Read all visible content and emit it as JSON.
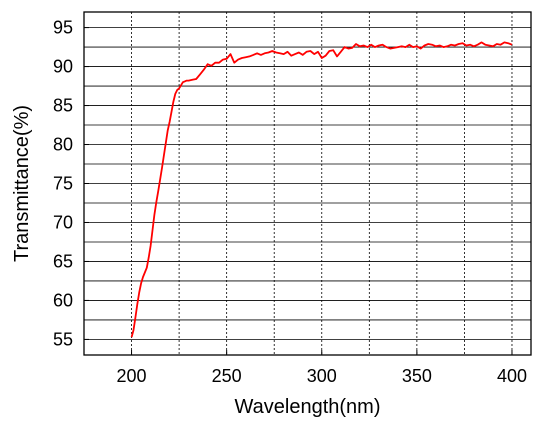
{
  "chart_data": {
    "type": "line",
    "title": "",
    "xlabel": "Wavelength(nm)",
    "ylabel": "Transmittance(%)",
    "xlim": [
      175,
      410
    ],
    "ylim": [
      53,
      97
    ],
    "xticks": [
      200,
      250,
      300,
      350,
      400
    ],
    "yticks": [
      55,
      60,
      65,
      70,
      75,
      80,
      85,
      90,
      95
    ],
    "vgrid_at": [
      200,
      225,
      250,
      275,
      300,
      325,
      350,
      375,
      400
    ],
    "hgrid_at": [
      55,
      57.5,
      60,
      62.5,
      65,
      67.5,
      70,
      72.5,
      75,
      77.5,
      80,
      82.5,
      85,
      87.5,
      90,
      92.5,
      95
    ],
    "grid": true,
    "legend": "none",
    "series": [
      {
        "color": "#ff0000",
        "x": [
          200,
          201,
          202,
          203,
          204,
          205,
          206,
          207,
          208,
          209,
          210,
          211,
          212,
          213,
          214,
          215,
          216,
          217,
          218,
          219,
          220,
          221,
          222,
          223,
          224,
          225,
          226,
          227,
          228,
          229,
          230,
          232,
          234,
          236,
          238,
          240,
          242,
          244,
          246,
          248,
          250,
          252,
          254,
          256,
          258,
          260,
          262,
          264,
          266,
          268,
          270,
          272,
          274,
          276,
          278,
          280,
          282,
          284,
          286,
          288,
          290,
          292,
          294,
          296,
          298,
          300,
          302,
          304,
          306,
          308,
          310,
          312,
          314,
          316,
          318,
          320,
          322,
          324,
          326,
          328,
          330,
          332,
          334,
          336,
          338,
          340,
          342,
          344,
          346,
          348,
          350,
          352,
          354,
          356,
          358,
          360,
          362,
          364,
          366,
          368,
          370,
          372,
          374,
          376,
          378,
          380,
          382,
          384,
          386,
          388,
          390,
          392,
          394,
          396,
          398,
          400
        ],
        "y": [
          55.3,
          56.2,
          57.8,
          59.5,
          61.0,
          62.2,
          63.0,
          63.6,
          64.2,
          65.5,
          67.0,
          69.0,
          71.0,
          72.6,
          74.0,
          75.5,
          77.0,
          78.6,
          80.2,
          81.8,
          82.9,
          84.2,
          85.5,
          86.5,
          87.0,
          87.2,
          87.6,
          88.0,
          88.1,
          88.2,
          88.2,
          88.3,
          88.4,
          89.0,
          89.6,
          90.3,
          90.1,
          90.5,
          90.5,
          90.9,
          91.0,
          91.6,
          90.5,
          90.9,
          91.1,
          91.2,
          91.3,
          91.5,
          91.7,
          91.5,
          91.7,
          91.8,
          92.0,
          91.8,
          91.7,
          91.6,
          91.9,
          91.4,
          91.6,
          91.8,
          91.5,
          91.9,
          92.0,
          91.6,
          91.9,
          91.1,
          91.4,
          92.0,
          92.1,
          91.3,
          91.9,
          92.5,
          92.3,
          92.4,
          92.9,
          92.6,
          92.7,
          92.5,
          92.8,
          92.5,
          92.7,
          92.8,
          92.5,
          92.3,
          92.4,
          92.5,
          92.6,
          92.5,
          92.8,
          92.5,
          92.6,
          92.3,
          92.7,
          92.9,
          92.8,
          92.6,
          92.7,
          92.5,
          92.6,
          92.8,
          92.7,
          92.9,
          93.0,
          92.7,
          92.8,
          92.6,
          92.8,
          93.1,
          92.8,
          92.7,
          92.6,
          92.9,
          92.8,
          93.1,
          93.0,
          92.8
        ]
      }
    ]
  }
}
